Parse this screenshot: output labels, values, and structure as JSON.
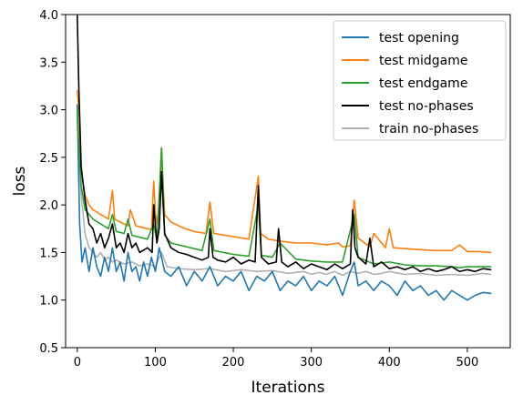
{
  "chart_data": {
    "type": "line",
    "title": "",
    "xlabel": "Iterations",
    "ylabel": "loss",
    "xlim": [
      -15,
      555
    ],
    "ylim": [
      0.5,
      4.0
    ],
    "xticks": [
      0,
      100,
      200,
      300,
      400,
      500
    ],
    "yticks": [
      0.5,
      1.0,
      1.5,
      2.0,
      2.5,
      3.0,
      3.5,
      4.0
    ],
    "xtick_labels": [
      "0",
      "100",
      "200",
      "300",
      "400",
      "500"
    ],
    "ytick_labels": [
      "0.5",
      "1.0",
      "1.5",
      "2.0",
      "2.5",
      "3.0",
      "3.5",
      "4.0"
    ],
    "grid": false,
    "legend_position": "top-right",
    "series": [
      {
        "name": "test opening",
        "color": "#1f77b4",
        "x": [
          0,
          3,
          6,
          10,
          15,
          20,
          25,
          30,
          35,
          40,
          45,
          50,
          55,
          60,
          65,
          70,
          75,
          80,
          85,
          90,
          95,
          100,
          105,
          108,
          112,
          120,
          130,
          140,
          150,
          160,
          170,
          180,
          190,
          200,
          210,
          220,
          230,
          240,
          250,
          260,
          270,
          280,
          290,
          300,
          310,
          320,
          330,
          340,
          350,
          355,
          360,
          370,
          380,
          390,
          400,
          410,
          420,
          430,
          440,
          450,
          460,
          470,
          480,
          490,
          500,
          510,
          520,
          530
        ],
        "y": [
          3.05,
          1.8,
          1.4,
          1.55,
          1.3,
          1.55,
          1.35,
          1.25,
          1.45,
          1.3,
          1.55,
          1.3,
          1.4,
          1.2,
          1.5,
          1.3,
          1.35,
          1.2,
          1.4,
          1.25,
          1.45,
          1.3,
          1.55,
          1.45,
          1.3,
          1.25,
          1.35,
          1.15,
          1.3,
          1.2,
          1.35,
          1.15,
          1.25,
          1.2,
          1.3,
          1.1,
          1.25,
          1.2,
          1.3,
          1.1,
          1.2,
          1.15,
          1.25,
          1.1,
          1.2,
          1.15,
          1.25,
          1.05,
          1.3,
          1.4,
          1.15,
          1.2,
          1.1,
          1.2,
          1.15,
          1.05,
          1.2,
          1.1,
          1.15,
          1.05,
          1.1,
          1.0,
          1.1,
          1.05,
          1.0,
          1.05,
          1.08,
          1.07
        ]
      },
      {
        "name": "test midgame",
        "color": "#ff7f0e",
        "x": [
          0,
          2,
          5,
          10,
          15,
          20,
          30,
          40,
          45,
          48,
          55,
          65,
          68,
          75,
          85,
          95,
          98,
          101,
          105,
          108,
          112,
          120,
          135,
          150,
          165,
          170,
          175,
          190,
          205,
          220,
          232,
          235,
          245,
          260,
          280,
          300,
          320,
          335,
          340,
          350,
          355,
          360,
          375,
          380,
          395,
          400,
          405,
          420,
          440,
          460,
          480,
          490,
          500,
          515,
          530
        ],
        "y": [
          3.2,
          3.0,
          2.35,
          2.1,
          2.0,
          1.95,
          1.9,
          1.85,
          2.15,
          1.85,
          1.82,
          1.78,
          1.95,
          1.78,
          1.76,
          1.74,
          2.25,
          1.8,
          1.95,
          2.6,
          1.9,
          1.82,
          1.76,
          1.72,
          1.7,
          2.03,
          1.7,
          1.68,
          1.66,
          1.64,
          2.3,
          1.7,
          1.64,
          1.62,
          1.6,
          1.6,
          1.58,
          1.6,
          1.56,
          1.57,
          2.05,
          1.65,
          1.56,
          1.7,
          1.55,
          1.75,
          1.55,
          1.54,
          1.53,
          1.52,
          1.52,
          1.58,
          1.51,
          1.51,
          1.5
        ]
      },
      {
        "name": "test endgame",
        "color": "#2ca02c",
        "x": [
          0,
          2,
          5,
          10,
          20,
          30,
          40,
          45,
          50,
          60,
          65,
          70,
          80,
          90,
          98,
          102,
          108,
          112,
          120,
          140,
          160,
          170,
          175,
          200,
          220,
          232,
          236,
          250,
          260,
          280,
          300,
          320,
          340,
          355,
          360,
          380,
          400,
          420,
          440,
          460,
          480,
          490,
          500,
          530
        ],
        "y": [
          3.0,
          2.6,
          2.2,
          1.95,
          1.85,
          1.8,
          1.75,
          1.9,
          1.72,
          1.7,
          1.85,
          1.68,
          1.66,
          1.64,
          1.8,
          1.62,
          2.6,
          1.68,
          1.6,
          1.56,
          1.52,
          1.85,
          1.52,
          1.48,
          1.46,
          2.0,
          1.47,
          1.45,
          1.6,
          1.43,
          1.41,
          1.4,
          1.4,
          1.9,
          1.45,
          1.38,
          1.4,
          1.37,
          1.36,
          1.36,
          1.35,
          1.34,
          1.35,
          1.35
        ]
      },
      {
        "name": "test no-phases",
        "color": "#000000",
        "x": [
          0,
          2,
          5,
          10,
          15,
          20,
          25,
          30,
          35,
          40,
          45,
          50,
          55,
          60,
          65,
          70,
          75,
          80,
          90,
          96,
          98,
          102,
          105,
          108,
          112,
          120,
          130,
          140,
          150,
          160,
          168,
          170,
          174,
          180,
          190,
          200,
          210,
          220,
          228,
          232,
          236,
          245,
          255,
          258,
          262,
          270,
          280,
          290,
          300,
          310,
          320,
          330,
          340,
          350,
          353,
          356,
          360,
          370,
          375,
          380,
          390,
          400,
          410,
          420,
          430,
          440,
          450,
          460,
          470,
          480,
          490,
          500,
          510,
          520,
          530
        ],
        "y": [
          4.0,
          3.2,
          2.4,
          2.05,
          1.8,
          1.75,
          1.6,
          1.7,
          1.55,
          1.65,
          1.8,
          1.55,
          1.6,
          1.5,
          1.7,
          1.55,
          1.6,
          1.5,
          1.55,
          1.5,
          2.0,
          1.6,
          1.75,
          2.35,
          1.7,
          1.55,
          1.5,
          1.48,
          1.45,
          1.42,
          1.45,
          1.75,
          1.45,
          1.42,
          1.4,
          1.45,
          1.38,
          1.42,
          1.4,
          2.2,
          1.45,
          1.38,
          1.4,
          1.75,
          1.4,
          1.35,
          1.4,
          1.33,
          1.38,
          1.35,
          1.32,
          1.38,
          1.33,
          1.38,
          1.95,
          1.55,
          1.45,
          1.38,
          1.65,
          1.35,
          1.4,
          1.33,
          1.35,
          1.32,
          1.35,
          1.3,
          1.33,
          1.3,
          1.32,
          1.35,
          1.3,
          1.32,
          1.3,
          1.33,
          1.32
        ]
      },
      {
        "name": "train no-phases",
        "color": "#b0b0b0",
        "x": [
          0,
          5,
          10,
          15,
          20,
          25,
          30,
          35,
          40,
          45,
          50,
          60,
          70,
          80,
          90,
          100,
          108,
          115,
          130,
          150,
          170,
          190,
          210,
          230,
          250,
          270,
          290,
          300,
          310,
          320,
          330,
          340,
          350,
          360,
          370,
          380,
          390,
          400,
          420,
          440,
          460,
          480,
          500,
          520,
          530
        ],
        "y": [
          2.9,
          2.1,
          1.7,
          1.55,
          1.5,
          1.45,
          1.5,
          1.42,
          1.45,
          1.4,
          1.42,
          1.38,
          1.4,
          1.36,
          1.38,
          1.35,
          1.5,
          1.35,
          1.33,
          1.32,
          1.33,
          1.3,
          1.32,
          1.3,
          1.31,
          1.28,
          1.3,
          1.27,
          1.29,
          1.27,
          1.3,
          1.26,
          1.3,
          1.28,
          1.3,
          1.27,
          1.28,
          1.3,
          1.27,
          1.28,
          1.26,
          1.27,
          1.26,
          1.28,
          1.27
        ]
      }
    ]
  }
}
